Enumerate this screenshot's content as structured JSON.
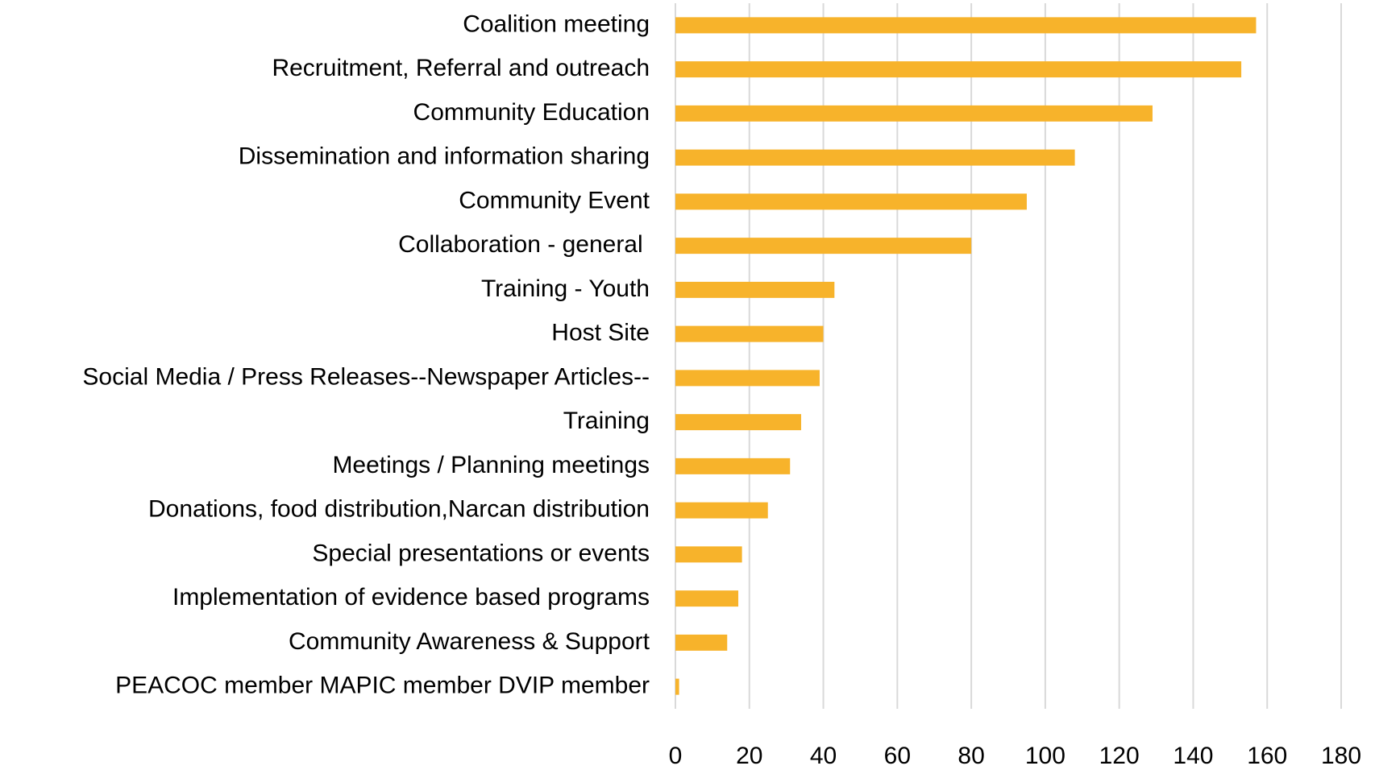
{
  "chart_data": {
    "type": "bar",
    "orientation": "horizontal",
    "categories": [
      "Coalition meeting",
      "Recruitment, Referral and outreach",
      "Community Education",
      "Dissemination and information sharing",
      "Community Event",
      "Collaboration - general ",
      "Training - Youth",
      "Host Site",
      "Social Media / Press Releases--Newspaper Articles--",
      "Training",
      "Meetings / Planning meetings",
      "Donations, food distribution,Narcan distribution",
      "Special presentations or events",
      "Implementation of evidence based programs",
      "Community Awareness & Support",
      "PEACOC member MAPIC member DVIP member"
    ],
    "values": [
      157,
      153,
      129,
      108,
      95,
      80,
      43,
      40,
      39,
      34,
      31,
      25,
      18,
      17,
      14,
      1
    ],
    "color": "#f7b32b",
    "xlim": [
      0,
      180
    ],
    "xticks": [
      0,
      20,
      40,
      60,
      80,
      100,
      120,
      140,
      160,
      180
    ],
    "grid": true
  }
}
